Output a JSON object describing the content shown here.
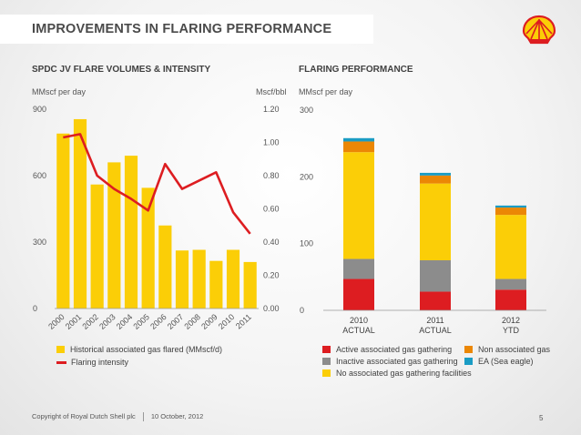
{
  "slide": {
    "title": "IMPROVEMENTS IN FLARING PERFORMANCE",
    "footer_copyright": "Copyright of Royal Dutch Shell plc",
    "footer_date": "10 October, 2012",
    "page_number": "5",
    "logo_icon": "shell-pecten-icon"
  },
  "left": {
    "section_title": "SPDC JV FLARE VOLUMES & INTENSITY",
    "left_unit": "MMscf per day",
    "right_unit": "Mscf/bbl",
    "legend_bars": "Historical associated gas flared (MMscf/d)",
    "legend_line": "Flaring intensity"
  },
  "right": {
    "section_title": "FLARING PERFORMANCE",
    "unit": "MMscf per day",
    "legend": {
      "active": "Active associated gas gathering",
      "inactive": "Inactive associated gas gathering",
      "none": "No associated gas gathering facilities",
      "non_associated": "Non associated gas",
      "ea": "EA (Sea eagle)"
    }
  },
  "colors": {
    "yellow": "#FBCE07",
    "red": "#DD1D21",
    "grey": "#8C8C8C",
    "orange": "#EB8705",
    "teal": "#1A9CC4"
  },
  "chart_data": [
    {
      "type": "bar",
      "categories": [
        "2000",
        "2001",
        "2002",
        "2003",
        "2004",
        "2005",
        "2006",
        "2007",
        "2008",
        "2009",
        "2010",
        "2011"
      ],
      "left_ticks": [
        "0",
        "300",
        "600",
        "900"
      ],
      "left_ylim": [
        0,
        900
      ],
      "right_ticks": [
        "0.00",
        "0.20",
        "0.40",
        "0.60",
        "0.80",
        "1.00",
        "1.20"
      ],
      "right_ylim": [
        0,
        1.2
      ],
      "series": [
        {
          "name": "Historical associated gas flared (MMscf/d)",
          "axis": "left",
          "values": [
            790,
            855,
            560,
            660,
            690,
            545,
            375,
            262,
            265,
            215,
            265,
            210
          ]
        },
        {
          "name": "Flaring intensity",
          "axis": "right",
          "type": "line",
          "values": [
            1.03,
            1.05,
            0.8,
            0.72,
            0.66,
            0.59,
            0.87,
            0.72,
            0.77,
            0.82,
            0.58,
            0.45
          ]
        }
      ]
    },
    {
      "type": "bar",
      "stacked": true,
      "categories": [
        [
          "2010",
          "ACTUAL"
        ],
        [
          "2011",
          "ACTUAL"
        ],
        [
          "2012",
          "YTD"
        ]
      ],
      "ticks": [
        "0",
        "100",
        "200",
        "300"
      ],
      "ylim": [
        0,
        300
      ],
      "series": [
        {
          "name": "Active associated gas gathering",
          "color_key": "red",
          "values": [
            47,
            28,
            31
          ]
        },
        {
          "name": "Inactive associated gas gathering",
          "color_key": "grey",
          "values": [
            30,
            47,
            16
          ]
        },
        {
          "name": "No associated gas gathering facilities",
          "color_key": "yellow",
          "values": [
            160,
            115,
            96
          ]
        },
        {
          "name": "Non associated gas",
          "color_key": "orange",
          "values": [
            16,
            12,
            11
          ]
        },
        {
          "name": "EA (Sea eagle)",
          "color_key": "teal",
          "values": [
            5,
            4,
            3
          ]
        }
      ]
    }
  ]
}
